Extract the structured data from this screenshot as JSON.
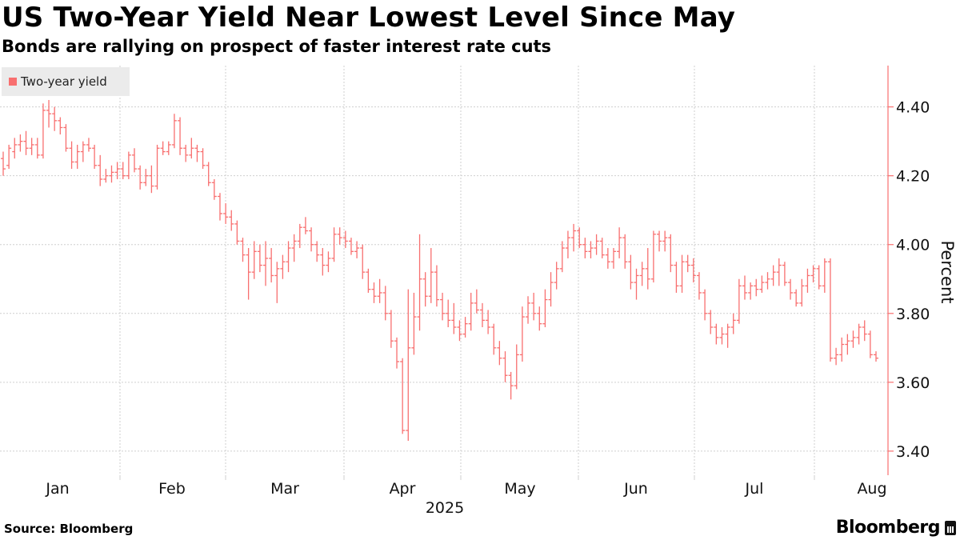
{
  "header": {
    "title": "US Two-Year Yield Near Lowest Level Since May",
    "subtitle": "Bonds are rallying on prospect of faster interest rate cuts"
  },
  "legend": {
    "label": "Two-year yield",
    "color": "#f86f6f"
  },
  "footer": {
    "source": "Source: Bloomberg",
    "brand": "Bloomberg"
  },
  "chart_data": {
    "type": "ohlc",
    "title": "US Two-Year Yield Near Lowest Level Since May",
    "series_name": "Two-year yield",
    "ylabel": "Percent",
    "ylim": [
      3.33,
      4.52
    ],
    "yticks": [
      4.4,
      4.2,
      4.0,
      3.8,
      3.6,
      3.4
    ],
    "ytick_labels": [
      "4.40",
      "4.20",
      "4.00",
      "3.80",
      "3.60",
      "3.40"
    ],
    "xlabel": "2025",
    "month_labels": [
      "Jan",
      "Feb",
      "Mar",
      "Apr",
      "May",
      "Jun",
      "Jul",
      "Aug"
    ],
    "grid": true,
    "color": "#f86f6f",
    "bars": [
      [
        4.25,
        4.27,
        4.2,
        4.22
      ],
      [
        4.23,
        4.29,
        4.22,
        4.28
      ],
      [
        4.27,
        4.31,
        4.25,
        4.29
      ],
      [
        4.29,
        4.32,
        4.27,
        4.3
      ],
      [
        4.3,
        4.33,
        4.26,
        4.28
      ],
      [
        4.28,
        4.31,
        4.26,
        4.29
      ],
      [
        4.29,
        4.31,
        4.25,
        4.26
      ],
      [
        4.26,
        4.41,
        4.25,
        4.39
      ],
      [
        4.39,
        4.42,
        4.34,
        4.38
      ],
      [
        4.38,
        4.4,
        4.33,
        4.36
      ],
      [
        4.36,
        4.37,
        4.32,
        4.34
      ],
      [
        4.34,
        4.35,
        4.27,
        4.28
      ],
      [
        4.28,
        4.3,
        4.22,
        4.24
      ],
      [
        4.24,
        4.29,
        4.22,
        4.27
      ],
      [
        4.27,
        4.3,
        4.24,
        4.29
      ],
      [
        4.29,
        4.31,
        4.27,
        4.28
      ],
      [
        4.28,
        4.29,
        4.22,
        4.23
      ],
      [
        4.23,
        4.26,
        4.17,
        4.19
      ],
      [
        4.19,
        4.22,
        4.18,
        4.2
      ],
      [
        4.2,
        4.23,
        4.18,
        4.21
      ],
      [
        4.21,
        4.24,
        4.19,
        4.22
      ],
      [
        4.22,
        4.24,
        4.19,
        4.2
      ],
      [
        4.2,
        4.27,
        4.19,
        4.26
      ],
      [
        4.26,
        4.28,
        4.21,
        4.22
      ],
      [
        4.22,
        4.23,
        4.16,
        4.18
      ],
      [
        4.18,
        4.22,
        4.17,
        4.2
      ],
      [
        4.2,
        4.23,
        4.15,
        4.17
      ],
      [
        4.17,
        4.29,
        4.16,
        4.28
      ],
      [
        4.28,
        4.3,
        4.26,
        4.27
      ],
      [
        4.27,
        4.3,
        4.26,
        4.29
      ],
      [
        4.29,
        4.38,
        4.28,
        4.36
      ],
      [
        4.36,
        4.37,
        4.26,
        4.28
      ],
      [
        4.28,
        4.29,
        4.24,
        4.26
      ],
      [
        4.26,
        4.31,
        4.25,
        4.28
      ],
      [
        4.28,
        4.29,
        4.24,
        4.27
      ],
      [
        4.27,
        4.28,
        4.22,
        4.23
      ],
      [
        4.23,
        4.24,
        4.17,
        4.18
      ],
      [
        4.18,
        4.19,
        4.13,
        4.14
      ],
      [
        4.14,
        4.15,
        4.07,
        4.09
      ],
      [
        4.09,
        4.12,
        4.06,
        4.08
      ],
      [
        4.08,
        4.1,
        4.04,
        4.06
      ],
      [
        4.06,
        4.07,
        4.0,
        4.01
      ],
      [
        4.01,
        4.02,
        3.95,
        3.97
      ],
      [
        3.97,
        3.99,
        3.84,
        3.92
      ],
      [
        3.92,
        4.01,
        3.9,
        3.98
      ],
      [
        3.98,
        4.0,
        3.92,
        3.94
      ],
      [
        3.94,
        4.01,
        3.88,
        3.96
      ],
      [
        3.96,
        3.99,
        3.89,
        3.91
      ],
      [
        3.91,
        3.95,
        3.83,
        3.93
      ],
      [
        3.93,
        3.97,
        3.9,
        3.95
      ],
      [
        3.95,
        4.01,
        3.92,
        3.99
      ],
      [
        3.99,
        4.03,
        3.95,
        4.01
      ],
      [
        4.01,
        4.06,
        3.99,
        4.05
      ],
      [
        4.05,
        4.08,
        4.03,
        4.04
      ],
      [
        4.04,
        4.05,
        3.98,
        4.0
      ],
      [
        4.0,
        4.01,
        3.95,
        3.97
      ],
      [
        3.97,
        3.99,
        3.91,
        3.94
      ],
      [
        3.94,
        3.98,
        3.92,
        3.96
      ],
      [
        3.96,
        4.05,
        3.95,
        4.03
      ],
      [
        4.03,
        4.05,
        4.0,
        4.02
      ],
      [
        4.02,
        4.04,
        3.99,
        4.01
      ],
      [
        4.01,
        4.02,
        3.97,
        3.98
      ],
      [
        3.98,
        4.01,
        3.96,
        3.99
      ],
      [
        3.99,
        4.0,
        3.9,
        3.92
      ],
      [
        3.92,
        3.93,
        3.86,
        3.87
      ],
      [
        3.87,
        3.89,
        3.83,
        3.85
      ],
      [
        3.85,
        3.9,
        3.83,
        3.86
      ],
      [
        3.86,
        3.88,
        3.78,
        3.8
      ],
      [
        3.8,
        3.81,
        3.7,
        3.72
      ],
      [
        3.72,
        3.73,
        3.64,
        3.66
      ],
      [
        3.66,
        3.67,
        3.45,
        3.46
      ],
      [
        3.46,
        3.87,
        3.43,
        3.7
      ],
      [
        3.7,
        3.86,
        3.68,
        3.79
      ],
      [
        3.79,
        4.03,
        3.75,
        3.9
      ],
      [
        3.9,
        3.92,
        3.82,
        3.85
      ],
      [
        3.85,
        3.99,
        3.83,
        3.92
      ],
      [
        3.92,
        3.94,
        3.82,
        3.84
      ],
      [
        3.84,
        3.86,
        3.78,
        3.8
      ],
      [
        3.8,
        3.84,
        3.76,
        3.78
      ],
      [
        3.78,
        3.83,
        3.74,
        3.76
      ],
      [
        3.76,
        3.78,
        3.72,
        3.74
      ],
      [
        3.74,
        3.79,
        3.73,
        3.77
      ],
      [
        3.77,
        3.86,
        3.75,
        3.83
      ],
      [
        3.83,
        3.87,
        3.8,
        3.81
      ],
      [
        3.81,
        3.83,
        3.76,
        3.78
      ],
      [
        3.78,
        3.81,
        3.74,
        3.76
      ],
      [
        3.76,
        3.77,
        3.68,
        3.7
      ],
      [
        3.7,
        3.72,
        3.65,
        3.67
      ],
      [
        3.67,
        3.69,
        3.6,
        3.62
      ],
      [
        3.62,
        3.63,
        3.55,
        3.59
      ],
      [
        3.59,
        3.71,
        3.58,
        3.68
      ],
      [
        3.68,
        3.82,
        3.66,
        3.79
      ],
      [
        3.79,
        3.85,
        3.77,
        3.83
      ],
      [
        3.83,
        3.86,
        3.78,
        3.8
      ],
      [
        3.8,
        3.82,
        3.75,
        3.77
      ],
      [
        3.77,
        3.87,
        3.76,
        3.84
      ],
      [
        3.84,
        3.92,
        3.82,
        3.89
      ],
      [
        3.89,
        3.95,
        3.87,
        3.93
      ],
      [
        3.93,
        4.01,
        3.92,
        3.99
      ],
      [
        3.99,
        4.04,
        3.96,
        4.02
      ],
      [
        4.02,
        4.06,
        3.98,
        4.04
      ],
      [
        4.04,
        4.05,
        3.99,
        4.0
      ],
      [
        4.0,
        4.02,
        3.96,
        3.98
      ],
      [
        3.98,
        4.01,
        3.96,
        3.99
      ],
      [
        3.99,
        4.03,
        3.97,
        4.01
      ],
      [
        4.01,
        4.02,
        3.96,
        3.97
      ],
      [
        3.97,
        3.99,
        3.93,
        3.95
      ],
      [
        3.95,
        3.99,
        3.93,
        3.98
      ],
      [
        3.98,
        4.05,
        3.96,
        4.02
      ],
      [
        4.02,
        4.03,
        3.93,
        3.95
      ],
      [
        3.95,
        3.97,
        3.87,
        3.89
      ],
      [
        3.89,
        3.93,
        3.84,
        3.91
      ],
      [
        3.91,
        3.95,
        3.88,
        3.93
      ],
      [
        3.93,
        3.99,
        3.87,
        3.9
      ],
      [
        3.9,
        4.04,
        3.89,
        4.03
      ],
      [
        4.03,
        4.04,
        3.98,
        4.01
      ],
      [
        4.01,
        4.04,
        3.98,
        4.02
      ],
      [
        4.02,
        4.03,
        3.92,
        3.94
      ],
      [
        3.94,
        3.95,
        3.86,
        3.88
      ],
      [
        3.88,
        3.97,
        3.86,
        3.95
      ],
      [
        3.95,
        3.97,
        3.92,
        3.94
      ],
      [
        3.94,
        3.96,
        3.89,
        3.91
      ],
      [
        3.91,
        3.92,
        3.84,
        3.86
      ],
      [
        3.86,
        3.87,
        3.78,
        3.8
      ],
      [
        3.8,
        3.81,
        3.74,
        3.76
      ],
      [
        3.76,
        3.77,
        3.71,
        3.73
      ],
      [
        3.73,
        3.76,
        3.71,
        3.74
      ],
      [
        3.74,
        3.77,
        3.7,
        3.76
      ],
      [
        3.76,
        3.8,
        3.74,
        3.78
      ],
      [
        3.78,
        3.9,
        3.77,
        3.88
      ],
      [
        3.88,
        3.91,
        3.84,
        3.86
      ],
      [
        3.86,
        3.89,
        3.84,
        3.88
      ],
      [
        3.88,
        3.9,
        3.85,
        3.87
      ],
      [
        3.87,
        3.91,
        3.86,
        3.89
      ],
      [
        3.89,
        3.92,
        3.87,
        3.9
      ],
      [
        3.9,
        3.94,
        3.88,
        3.92
      ],
      [
        3.92,
        3.96,
        3.88,
        3.94
      ],
      [
        3.94,
        3.95,
        3.88,
        3.89
      ],
      [
        3.89,
        3.9,
        3.84,
        3.86
      ],
      [
        3.86,
        3.87,
        3.82,
        3.83
      ],
      [
        3.83,
        3.9,
        3.82,
        3.88
      ],
      [
        3.88,
        3.93,
        3.86,
        3.91
      ],
      [
        3.91,
        3.94,
        3.89,
        3.93
      ],
      [
        3.93,
        3.94,
        3.87,
        3.88
      ],
      [
        3.88,
        3.96,
        3.86,
        3.95
      ],
      [
        3.95,
        3.96,
        3.66,
        3.67
      ],
      [
        3.67,
        3.7,
        3.65,
        3.68
      ],
      [
        3.68,
        3.73,
        3.66,
        3.71
      ],
      [
        3.71,
        3.74,
        3.68,
        3.72
      ],
      [
        3.72,
        3.75,
        3.7,
        3.73
      ],
      [
        3.73,
        3.77,
        3.71,
        3.76
      ],
      [
        3.76,
        3.78,
        3.72,
        3.74
      ],
      [
        3.74,
        3.75,
        3.67,
        3.68
      ],
      [
        3.68,
        3.69,
        3.66,
        3.67
      ]
    ]
  }
}
